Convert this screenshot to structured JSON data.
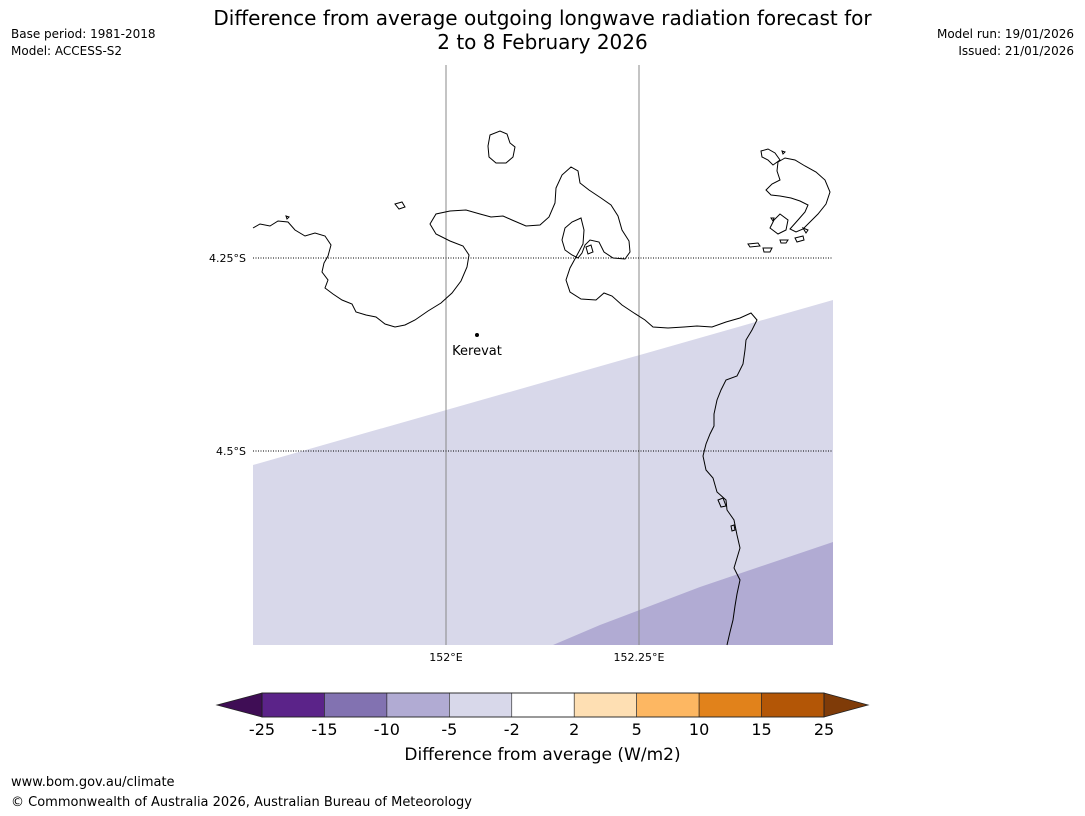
{
  "header": {
    "title_line1": "Difference from average outgoing longwave radiation forecast for",
    "title_line2": "2 to 8 February 2026",
    "base_period": "Base period: 1981-2018",
    "model": "Model: ACCESS-S2",
    "model_run": "Model run: 19/01/2026",
    "issued": "Issued: 21/01/2026"
  },
  "map": {
    "graticule": {
      "lat_labels": [
        "4.25°S",
        "4.5°S"
      ],
      "lon_labels": [
        "152°E",
        "152.25°E"
      ]
    },
    "place": {
      "name": "Kerevat"
    },
    "shading": {
      "light_category": "-5 to -2",
      "dark_category": "-10 to -5",
      "light_color": "#d8d8ea",
      "dark_color": "#b1abd3"
    }
  },
  "colorbar": {
    "title": "Difference from average (W/m2)",
    "ticks": [
      "-25",
      "-15",
      "-10",
      "-5",
      "-2",
      "2",
      "5",
      "10",
      "15",
      "25"
    ],
    "colors": [
      "#3f0d55",
      "#5b2389",
      "#8272b1",
      "#b1abd3",
      "#d8d8ea",
      "#ffffff",
      "#fedfb3",
      "#fdb762",
      "#e1821b",
      "#b35606",
      "#7f3b08"
    ]
  },
  "footer": {
    "url": "www.bom.gov.au/climate",
    "copyright": "© Commonwealth of Australia 2026, Australian Bureau of Meteorology"
  }
}
